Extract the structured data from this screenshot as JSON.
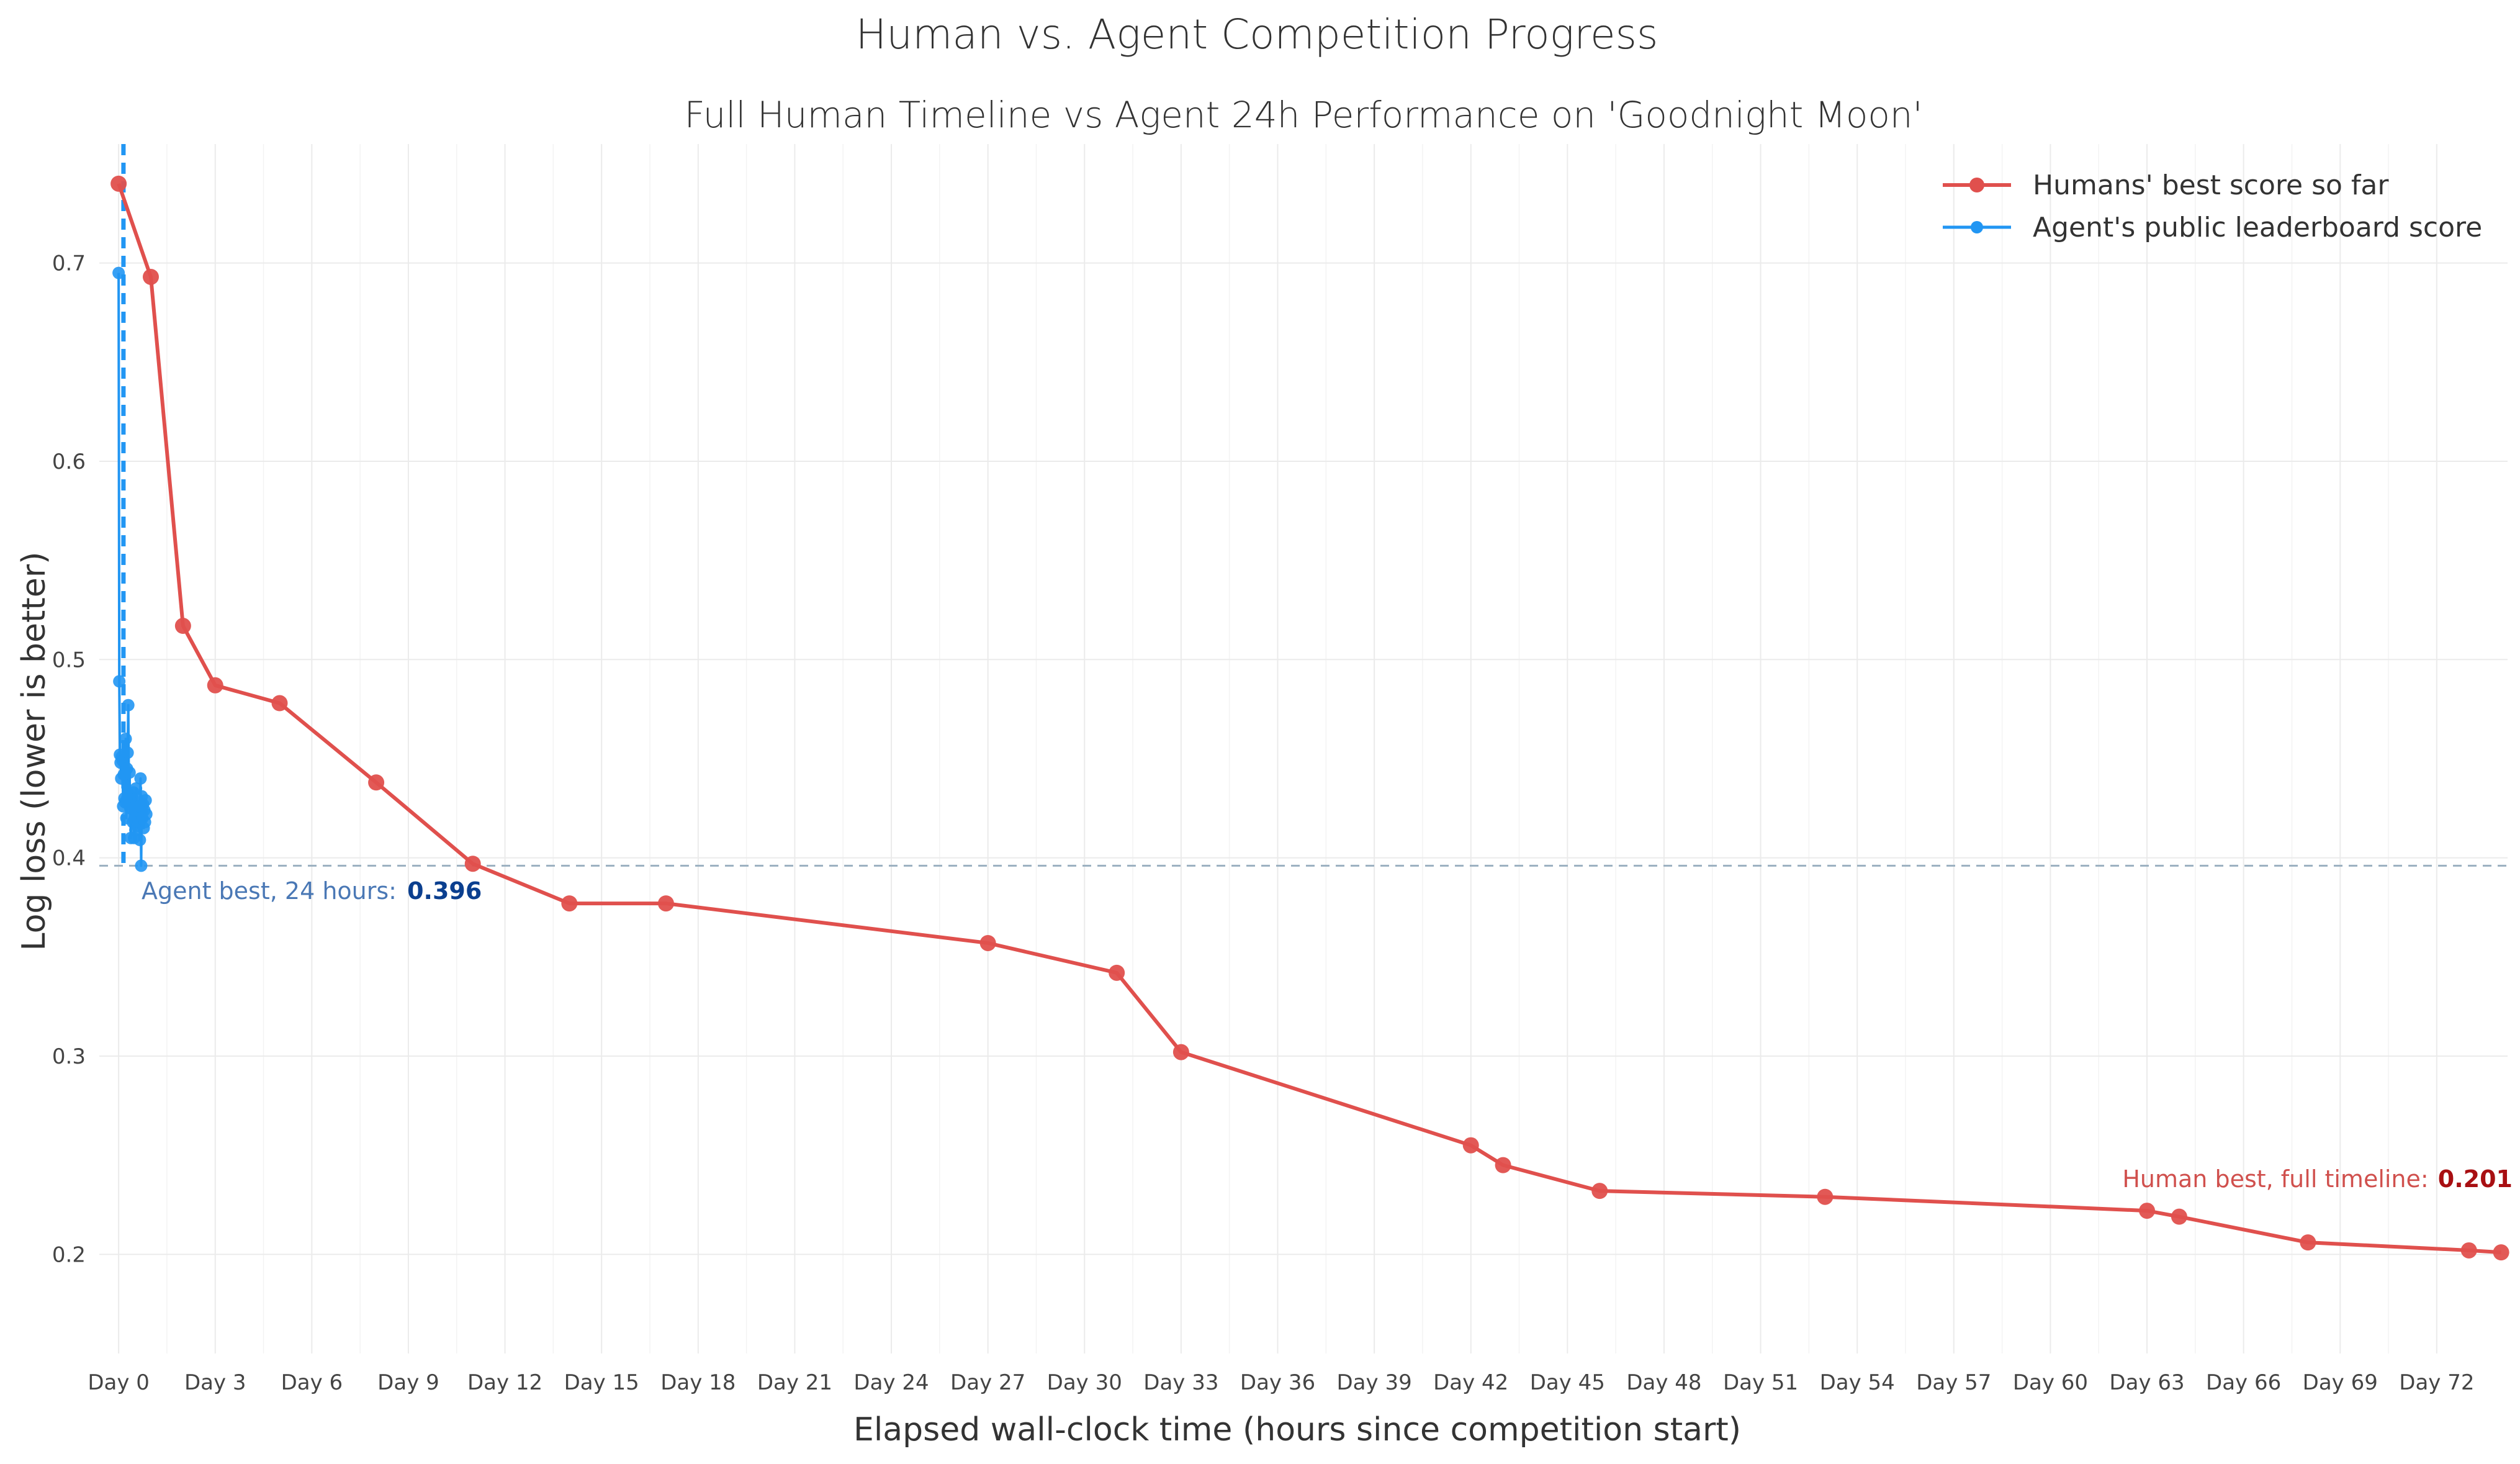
{
  "chart_data": {
    "type": "line",
    "title": "Human vs. Agent Competition Progress",
    "subtitle": "Full Human Timeline vs Agent 24h Performance on 'Goodnight Moon'",
    "xlabel": "Elapsed wall-clock time (hours since competition start)",
    "ylabel": "Log loss (lower is better)",
    "xlim": [
      -0.6,
      74.2
    ],
    "ylim": [
      0.15,
      0.76
    ],
    "y_ticks": [
      0.2,
      0.3,
      0.4,
      0.5,
      0.6,
      0.7
    ],
    "y_tick_labels": [
      "0.2",
      "0.3",
      "0.4",
      "0.5",
      "0.6",
      "0.7"
    ],
    "x_ticks": [
      0,
      3,
      6,
      9,
      12,
      15,
      18,
      21,
      24,
      27,
      30,
      33,
      36,
      39,
      42,
      45,
      48,
      51,
      54,
      57,
      60,
      63,
      66,
      69,
      72
    ],
    "x_tick_labels": [
      "Day 0",
      "Day 3",
      "Day 6",
      "Day 9",
      "Day 12",
      "Day 15",
      "Day 18",
      "Day 21",
      "Day 24",
      "Day 27",
      "Day 30",
      "Day 33",
      "Day 36",
      "Day 39",
      "Day 42",
      "Day 45",
      "Day 48",
      "Day 51",
      "Day 54",
      "Day 57",
      "Day 60",
      "Day 63",
      "Day 66",
      "Day 69",
      "Day 72"
    ],
    "grid": true,
    "legend_position": "top-right",
    "series": [
      {
        "name": "Humans' best score so far",
        "color": "#e0504d",
        "x": [
          0,
          1,
          2,
          3,
          5,
          8,
          11,
          14,
          17,
          27,
          31,
          33,
          42,
          43,
          46,
          53,
          63,
          64,
          68,
          73,
          74
        ],
        "y": [
          0.74,
          0.693,
          0.517,
          0.487,
          0.478,
          0.438,
          0.397,
          0.377,
          0.377,
          0.357,
          0.342,
          0.302,
          0.255,
          0.245,
          0.232,
          0.229,
          0.222,
          0.219,
          0.206,
          0.202,
          0.201
        ]
      },
      {
        "name": "Agent's public leaderboard score",
        "color": "#2196f3",
        "x": [
          0,
          0.02,
          0.04,
          0.06,
          0.08,
          0.1,
          0.12,
          0.14,
          0.16,
          0.18,
          0.2,
          0.22,
          0.24,
          0.26,
          0.28,
          0.3,
          0.32,
          0.34,
          0.36,
          0.38,
          0.4,
          0.42,
          0.44,
          0.46,
          0.48,
          0.5,
          0.52,
          0.54,
          0.56,
          0.58,
          0.6,
          0.62,
          0.64,
          0.66,
          0.68,
          0.7,
          0.72,
          0.74,
          0.76,
          0.78,
          0.8,
          0.82,
          0.84,
          0.86
        ],
        "y": [
          0.695,
          0.489,
          0.452,
          0.448,
          0.44,
          0.451,
          0.449,
          0.426,
          0.442,
          0.43,
          0.428,
          0.46,
          0.42,
          0.445,
          0.453,
          0.477,
          0.432,
          0.443,
          0.425,
          0.41,
          0.43,
          0.425,
          0.418,
          0.433,
          0.41,
          0.42,
          0.414,
          0.435,
          0.422,
          0.416,
          0.428,
          0.418,
          0.426,
          0.409,
          0.44,
          0.396,
          0.431,
          0.42,
          0.427,
          0.415,
          0.424,
          0.418,
          0.429,
          0.422
        ]
      }
    ],
    "reference_lines": [
      {
        "axis": "y",
        "value": 0.396,
        "style": "dashed",
        "color": "#9bb0c0"
      },
      {
        "axis": "x",
        "value": 0.15,
        "style": "dashed",
        "color": "#2196f3"
      }
    ],
    "annotations": {
      "agent_best_label": "Agent best, 24 hours:",
      "agent_best_value": "0.396",
      "human_best_label": "Human best, full timeline:",
      "human_best_value": "0.201"
    }
  }
}
